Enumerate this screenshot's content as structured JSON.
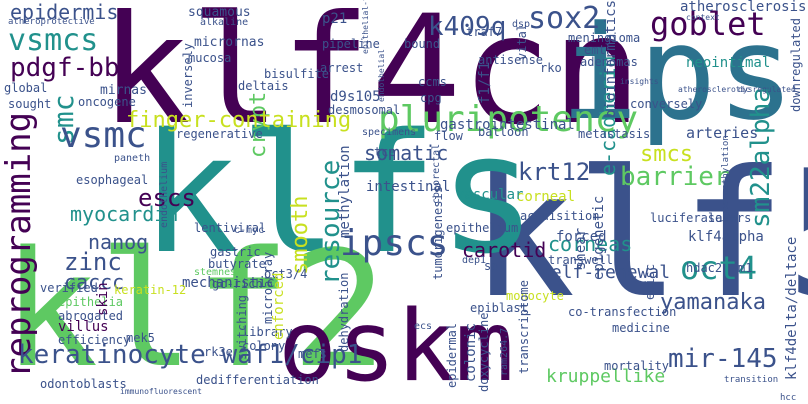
{
  "palette": {
    "purple": "#440154",
    "indigo": "#3b528b",
    "teal": "#21918c",
    "green": "#5ec962",
    "lime": "#c8e020",
    "yellow": "#fde725"
  },
  "words": {
    "klf4cn": "klf4cn",
    "ips": "ips",
    "klf5": "klf5",
    "klfs": "klfs",
    "klf2": "klf2",
    "oskm": "oskm",
    "reprogramming": "reprogramming",
    "vsmcs": "vsmcs",
    "vsmc": "vsmc",
    "pdgf_bb": "pdgf-bb",
    "epidermis": "epidermis",
    "pluripotency": "pluripotency",
    "finger_containing": "finger-containing",
    "k409q": "k409q",
    "sox2": "sox2",
    "goblet": "goblet",
    "smc": "smc",
    "smcs": "smcs",
    "sm22alpha": "sm22alpha",
    "barrier": "barrier",
    "keratinocyte": "keratinocyte waf1/cip1",
    "yamanaka": "yamanaka",
    "oct4": "oct4",
    "mir_145": "mir-145",
    "ipscs": "ipscs",
    "carotid": "carotid",
    "corneas": "corneas",
    "self_renewal": "self-renewal",
    "krt12": "krt12",
    "nanog": "nanog",
    "zinc": "zinc",
    "caccc": "caccc",
    "myocardin": "myocardin",
    "escs": "escs",
    "smooth": "smooth",
    "resource": "resource",
    "somatic": "somatic",
    "crypt": "crypt",
    "squamous": "squamous",
    "micrornas": "micrornas",
    "mirnas": "mirnas",
    "atherosclerosis": "atherosclerosis",
    "neointimal": "neointimal",
    "e_cadherin": "e-cadherin",
    "arteries": "arteries",
    "kruppellike": "kruppellike",
    "klf4delta": "klf4delta/deltace",
    "klf4alpha": "klf4alpha",
    "corneal": "corneal",
    "vascular": "vascular",
    "intestinal": "intestinal",
    "gastrointestinal": "gastrointestinal",
    "methylation": "methylation",
    "dehydration": "dehydration",
    "microarray": "microarray",
    "switching": "switching",
    "enforced": "enforced",
    "mechanistic": "mechanistic",
    "oct34": "oct3/4",
    "keratin12": "keratin-12",
    "epithelia": "epithelia",
    "abrogated": "abrogated",
    "villus": "villus",
    "skin": "skin",
    "verified": "verified",
    "efficiency": "efficiency",
    "mek5": "mek5",
    "odontoblasts": "odontoblasts",
    "dedifferentiation": "dedifferentiation",
    "forced": "forced",
    "shear": "shear",
    "epigenetic": "epigenetic",
    "transwell": "transwell",
    "colonic": "colonic",
    "epidermal": "epidermal",
    "doxycycline": "doxycycline",
    "tumorigenesis": "tumorigenesis",
    "colorectal": "colorectal",
    "endothelium": "endothelium",
    "gastric": "gastric",
    "butyrate": "butyrate",
    "gc_rich": "gc-rich",
    "stemness": "stemness",
    "lentiviral": "lentiviral",
    "tce": "tce",
    "c_myc": "c-myc",
    "regenerative": "regenerative",
    "esophageal": "esophageal",
    "paneth": "paneth",
    "global": "global",
    "sought": "sought",
    "oncogene": "oncogene",
    "pipeline": "pipeline",
    "arrest": "arrest",
    "mucosa": "mucosa",
    "deltais": "deltais",
    "bisulfite": "bisulfite",
    "alkaline": "alkaline",
    "p21": "p21",
    "d9s105": "d9s105",
    "desmosomal": "desmosomal",
    "cpg": "cpg",
    "flow": "flow",
    "balloon": "balloon",
    "specimens": "specimens",
    "bound": "bound",
    "f1f1": "f1/f1",
    "ccms": "ccms",
    "antisense": "antisense",
    "traf7": "traf7",
    "vital": "vital",
    "dsp": "dsp",
    "meningioma": "meningioma",
    "emt": "emt",
    "adenomas": "adenomas",
    "rko": "rko",
    "bioinformatics": "bioinformatics",
    "conversely": "conversely",
    "downregulated": "downregulated",
    "metastasis": "metastasis",
    "layers": "layers",
    "luciferase": "luciferase",
    "hdac2": "hdac2",
    "m1": "m1",
    "episc": "episc",
    "epiblast": "epiblast",
    "library": "library",
    "colony": "colony",
    "rk3e": "rk3e",
    "mefs": "mefs",
    "medicine": "medicine",
    "co_transfection": "co-transfection",
    "transcriptome": "transcriptome",
    "mortality": "mortality",
    "ram264": "ram264.7",
    "inversely": "inversely",
    "acquisition": "acquisition",
    "epithelium": "epithelium",
    "monocyte": "monocyte",
    "atheroprotective": "atheroprotective",
    "hcc": "hcc",
    "sp1": "sp1",
    "dep1": "dep1",
    "hypermethylation": "hypermethylation",
    "atherosclerotic": "atherosclerotic",
    "epithelial_mesenchymal": "epithelial-to-mesenchymal",
    "endothelial": "endothelial",
    "ecs": "ecs",
    "context": "context",
    "transition": "transition",
    "immunofluorescent": "immunofluorescent",
    "insights": "insights",
    "dysregulated": "dysregulated"
  }
}
